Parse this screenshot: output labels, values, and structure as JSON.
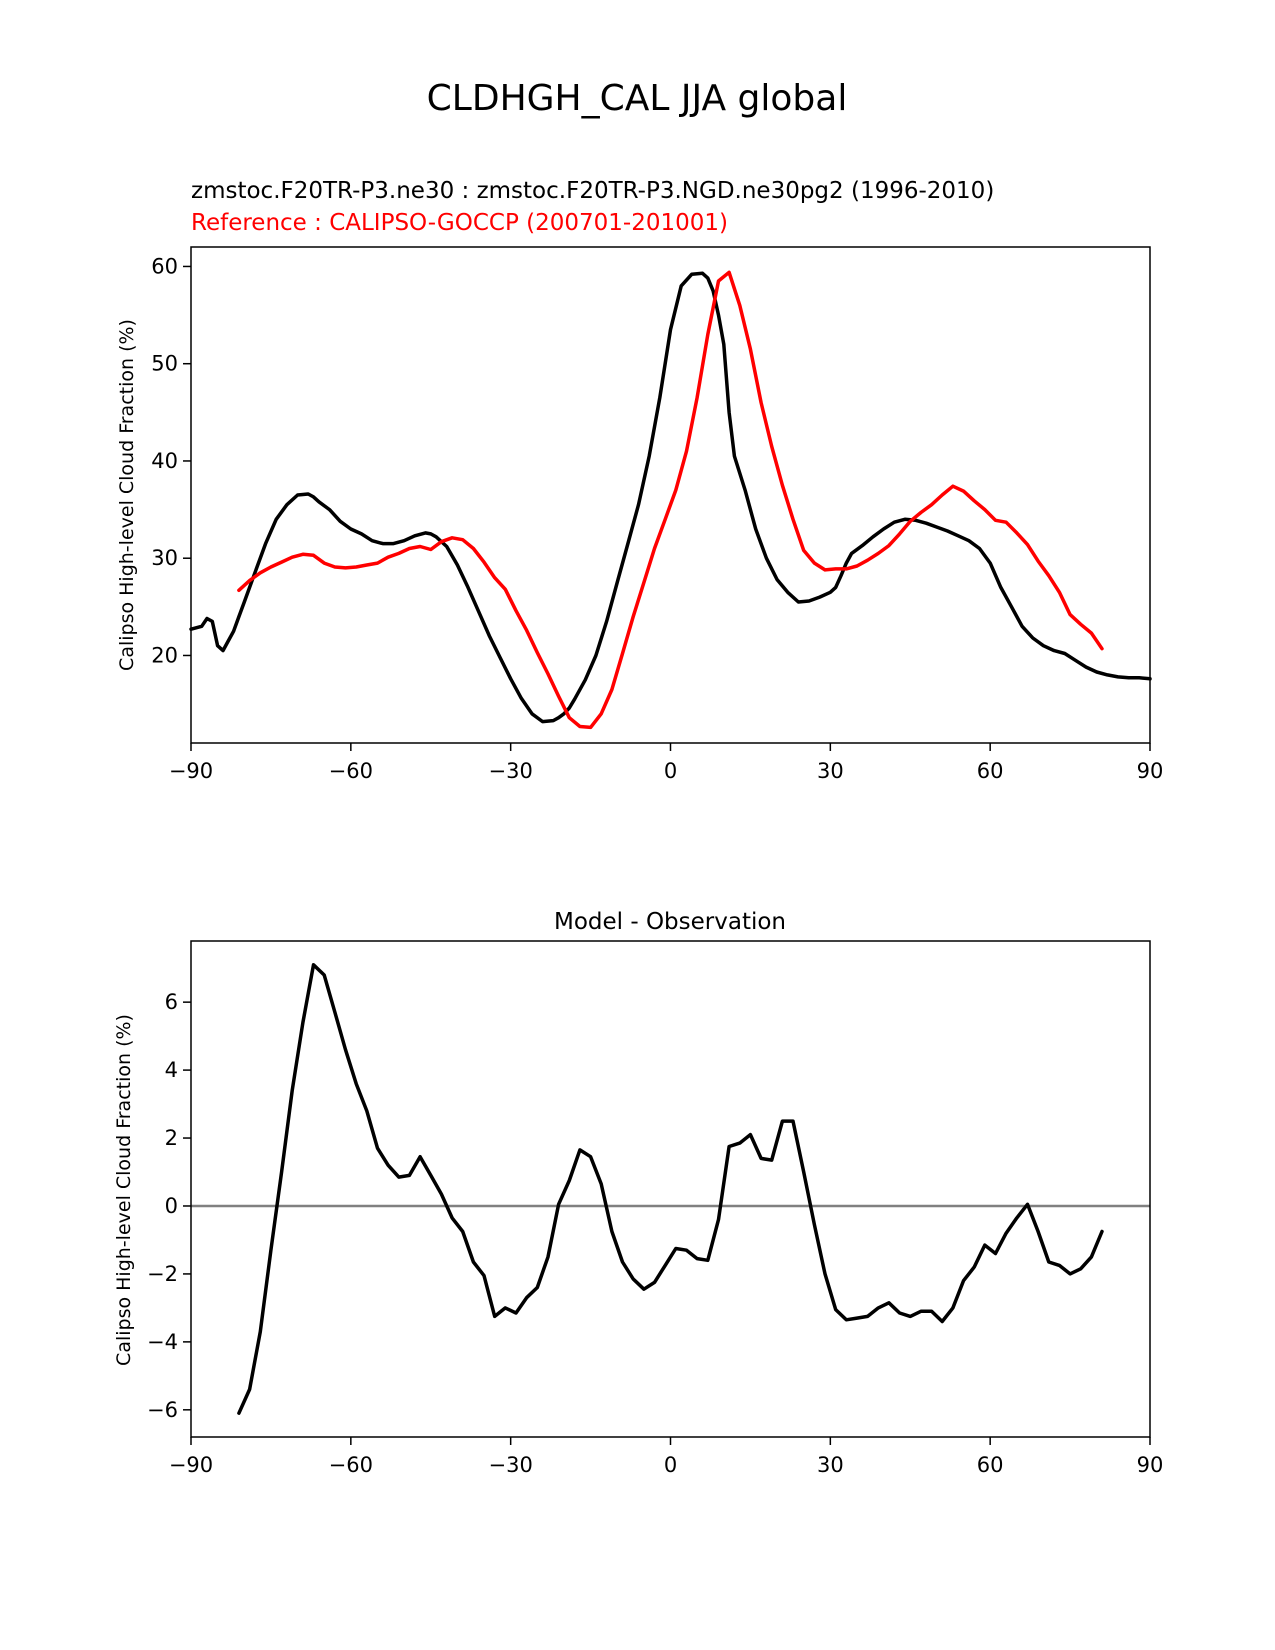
{
  "figure": {
    "title": "CLDHGH_CAL JJA global",
    "colors": {
      "model": "#000000",
      "reference": "#ff0000",
      "zero_line": "#808080"
    }
  },
  "chart_data": [
    {
      "type": "line",
      "title_line1": "zmstoc.F20TR-P3.ne30 : zmstoc.F20TR-P3.NGD.ne30pg2 (1996-2010)",
      "title_line2": "Reference : CALIPSO-GOCCP (200701-201001)",
      "xlabel": "",
      "ylabel": "Calipso High-level Cloud Fraction (%)",
      "xlim": [
        -90,
        90
      ],
      "ylim": [
        11,
        62
      ],
      "xticks": [
        -90,
        -60,
        -30,
        0,
        30,
        60,
        90
      ],
      "xtick_labels": [
        "−90",
        "−60",
        "−30",
        "0",
        "30",
        "60",
        "90"
      ],
      "yticks": [
        20,
        30,
        40,
        50,
        60
      ],
      "ytick_labels": [
        "20",
        "30",
        "40",
        "50",
        "60"
      ],
      "series": [
        {
          "name": "model",
          "color": "#000000",
          "x": [
            -90,
            -88,
            -87,
            -86,
            -85,
            -84,
            -83,
            -82,
            -81,
            -80,
            -78,
            -76,
            -74,
            -72,
            -70,
            -68,
            -67,
            -66,
            -64,
            -62,
            -60,
            -58,
            -56,
            -54,
            -52,
            -50,
            -48,
            -46,
            -45,
            -44,
            -42,
            -40,
            -38,
            -36,
            -34,
            -32,
            -30,
            -28,
            -26,
            -24,
            -22,
            -21,
            -20,
            -19,
            -18,
            -16,
            -14,
            -12,
            -10,
            -8,
            -6,
            -4,
            -2,
            0,
            2,
            4,
            6,
            7,
            8,
            9,
            10,
            11,
            12,
            14,
            16,
            18,
            20,
            22,
            24,
            26,
            28,
            30,
            31,
            32,
            33,
            34,
            36,
            38,
            40,
            42,
            44,
            46,
            48,
            50,
            52,
            54,
            56,
            58,
            60,
            62,
            64,
            66,
            68,
            70,
            72,
            74,
            76,
            78,
            80,
            82,
            84,
            86,
            88,
            90
          ],
          "y": [
            22.7,
            23.0,
            23.8,
            23.5,
            21.0,
            20.5,
            21.5,
            22.5,
            24.0,
            25.5,
            28.5,
            31.5,
            34.0,
            35.5,
            36.5,
            36.6,
            36.3,
            35.8,
            35.0,
            33.8,
            33.0,
            32.5,
            31.8,
            31.5,
            31.5,
            31.8,
            32.3,
            32.6,
            32.5,
            32.2,
            31.2,
            29.3,
            27.0,
            24.5,
            22.0,
            19.8,
            17.6,
            15.6,
            14.0,
            13.2,
            13.3,
            13.6,
            14.0,
            14.6,
            15.5,
            17.5,
            20.0,
            23.5,
            27.5,
            31.5,
            35.5,
            40.5,
            46.5,
            53.5,
            58.0,
            59.2,
            59.3,
            58.8,
            57.5,
            55.0,
            52.0,
            45.0,
            40.5,
            37.0,
            33.0,
            30.0,
            27.8,
            26.5,
            25.5,
            25.6,
            26.0,
            26.5,
            27.0,
            28.2,
            29.5,
            30.5,
            31.3,
            32.2,
            33.0,
            33.7,
            34.0,
            33.9,
            33.6,
            33.2,
            32.8,
            32.3,
            31.8,
            31.0,
            29.5,
            27.0,
            25.0,
            23.0,
            21.8,
            21.0,
            20.5,
            20.2,
            19.5,
            18.8,
            18.3,
            18.0,
            17.8,
            17.7,
            17.7,
            17.6
          ],
          "x_note": "model x values trail to the right axis edge"
        },
        {
          "name": "reference",
          "color": "#ff0000",
          "x": [
            -81,
            -79,
            -77,
            -75,
            -73,
            -71,
            -69,
            -67,
            -65,
            -63,
            -61,
            -59,
            -57,
            -55,
            -53,
            -51,
            -49,
            -47,
            -45,
            -43,
            -41,
            -39,
            -37,
            -35,
            -33,
            -31,
            -29,
            -27,
            -25,
            -23,
            -21,
            -19,
            -17,
            -15,
            -13,
            -11,
            -9,
            -7,
            -5,
            -3,
            -1,
            1,
            3,
            5,
            7,
            9,
            11,
            13,
            15,
            17,
            19,
            21,
            23,
            25,
            27,
            29,
            31,
            33,
            35,
            37,
            39,
            41,
            43,
            45,
            47,
            49,
            51,
            53,
            55,
            57,
            59,
            61,
            63,
            65,
            67,
            69,
            71,
            73,
            75,
            77,
            79,
            81
          ],
          "y": [
            26.7,
            27.7,
            28.5,
            29.1,
            29.6,
            30.1,
            30.4,
            30.3,
            29.5,
            29.1,
            29.0,
            29.1,
            29.3,
            29.5,
            30.1,
            30.5,
            31.0,
            31.2,
            30.9,
            31.7,
            32.1,
            31.9,
            31.0,
            29.6,
            28.0,
            26.8,
            24.6,
            22.6,
            20.3,
            18.1,
            15.8,
            13.6,
            12.7,
            12.6,
            14.0,
            16.5,
            20.2,
            24.0,
            27.5,
            31.0,
            34.0,
            37.0,
            41.0,
            46.5,
            53.0,
            58.5,
            59.4,
            56.0,
            51.5,
            46.0,
            41.5,
            37.5,
            34.0,
            30.8,
            29.5,
            28.8,
            28.9,
            28.9,
            29.2,
            29.8,
            30.5,
            31.3,
            32.5,
            33.8,
            34.7,
            35.5,
            36.5,
            37.4,
            36.9,
            35.9,
            35.0,
            33.9,
            33.7,
            32.6,
            31.4,
            29.7,
            28.2,
            26.5,
            24.2,
            23.2,
            22.3,
            20.7
          ],
          "x_note": ""
        }
      ]
    },
    {
      "type": "line",
      "title": "Model - Observation",
      "xlabel": "",
      "ylabel": "Calipso High-level Cloud Fraction (%)",
      "xlim": [
        -90,
        90
      ],
      "ylim": [
        -6.8,
        7.8
      ],
      "xticks": [
        -90,
        -60,
        -30,
        0,
        30,
        60,
        90
      ],
      "xtick_labels": [
        "−90",
        "−60",
        "−30",
        "0",
        "30",
        "60",
        "90"
      ],
      "yticks": [
        -6,
        -4,
        -2,
        0,
        2,
        4,
        6
      ],
      "ytick_labels": [
        "−6",
        "−4",
        "−2",
        "0",
        "2",
        "4",
        "6"
      ],
      "zero_line": 0,
      "series": [
        {
          "name": "difference",
          "color": "#000000",
          "x": [
            -81,
            -79,
            -77,
            -75,
            -73,
            -71,
            -69,
            -67,
            -65,
            -63,
            -61,
            -59,
            -57,
            -55,
            -53,
            -51,
            -49,
            -47,
            -45,
            -43,
            -41,
            -39,
            -37,
            -35,
            -33,
            -31,
            -29,
            -27,
            -25,
            -23,
            -21,
            -19,
            -17,
            -15,
            -13,
            -11,
            -9,
            -7,
            -5,
            -3,
            -1,
            1,
            3,
            5,
            7,
            9,
            11,
            13,
            15,
            17,
            19,
            21,
            23,
            25,
            27,
            29,
            31,
            33,
            35,
            37,
            39,
            41,
            43,
            45,
            47,
            49,
            51,
            53,
            55,
            57,
            59,
            61,
            63,
            65,
            67,
            69,
            71,
            73,
            75,
            77,
            79,
            81
          ],
          "y": [
            -6.1,
            -5.4,
            -3.7,
            -1.3,
            1.0,
            3.4,
            5.4,
            7.1,
            6.8,
            5.7,
            4.6,
            3.6,
            2.8,
            1.7,
            1.2,
            0.85,
            0.9,
            1.45,
            0.9,
            0.35,
            -0.35,
            -0.75,
            -1.65,
            -2.05,
            -3.25,
            -3.0,
            -3.15,
            -2.7,
            -2.4,
            -1.5,
            0.05,
            0.75,
            1.65,
            1.45,
            0.65,
            -0.75,
            -1.65,
            -2.15,
            -2.45,
            -2.25,
            -1.75,
            -1.25,
            -1.3,
            -1.55,
            -1.6,
            -0.4,
            1.75,
            1.85,
            2.1,
            1.4,
            1.35,
            2.5,
            2.5,
            1.0,
            -0.55,
            -2.0,
            -3.05,
            -3.35,
            -3.3,
            -3.25,
            -3.0,
            -2.85,
            -3.15,
            -3.25,
            -3.1,
            -3.1,
            -3.4,
            -3.0,
            -2.2,
            -1.8,
            -1.15,
            -1.4,
            -0.8,
            -0.35,
            0.05,
            -0.75,
            -1.65,
            -1.75,
            -2.0,
            -1.85,
            -1.5,
            -0.75
          ]
        }
      ]
    }
  ]
}
